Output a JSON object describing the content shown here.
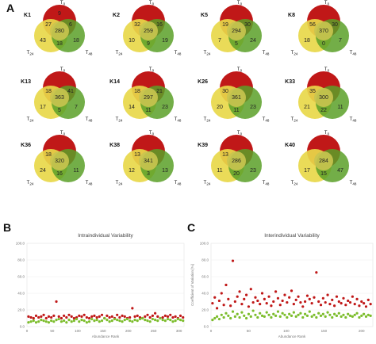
{
  "figure": {
    "panels": [
      {
        "id": "A",
        "label": "A"
      },
      {
        "id": "B",
        "label": "B"
      },
      {
        "id": "C",
        "label": "C"
      }
    ]
  },
  "colors": {
    "red": "#c01818",
    "yellow": "#e8d84a",
    "green": "#5aa028",
    "overlap_yg": "#b0c238",
    "center": "#c9c450"
  },
  "venn": [
    {
      "label": "K1",
      "labels": {
        "top": "T0",
        "left": "T24",
        "right": "T48"
      },
      "regions": {
        "top": "9",
        "top_left": "27",
        "top_right": "6",
        "center": "280",
        "left": "43",
        "right": "18",
        "bottom": "18"
      }
    },
    {
      "label": "K2",
      "labels": {
        "top": "T0",
        "left": "T24",
        "right": "T48"
      },
      "regions": {
        "top": "",
        "top_left": "32",
        "top_right": "16",
        "center": "259",
        "left": "10",
        "right": "19",
        "bottom": "9"
      }
    },
    {
      "label": "K5",
      "labels": {
        "top": "T0",
        "left": "T24",
        "right": "T48"
      },
      "regions": {
        "top": "",
        "top_left": "19",
        "top_right": "30",
        "center": "294",
        "left": "7",
        "right": "24",
        "bottom": "5"
      }
    },
    {
      "label": "K8",
      "labels": {
        "top": "T0",
        "left": "T24",
        "right": "T48"
      },
      "regions": {
        "top": "",
        "top_left": "56",
        "top_right": "30",
        "center": "370",
        "left": "18",
        "right": "7",
        "bottom": "0"
      }
    },
    {
      "label": "K13",
      "labels": {
        "top": "T0",
        "left": "T24",
        "right": "T48"
      },
      "regions": {
        "top": "",
        "top_left": "18",
        "top_right": "41",
        "center": "363",
        "left": "17",
        "right": "7",
        "bottom": "5"
      }
    },
    {
      "label": "K14",
      "labels": {
        "top": "T0",
        "left": "T24",
        "right": "T48"
      },
      "regions": {
        "top": "",
        "top_left": "18",
        "top_right": "21",
        "center": "297",
        "left": "14",
        "right": "23",
        "bottom": "11"
      }
    },
    {
      "label": "K26",
      "labels": {
        "top": "T0",
        "left": "T24",
        "right": "T48"
      },
      "regions": {
        "top": "",
        "top_left": "30",
        "top_right": "",
        "center": "361",
        "left": "20",
        "right": "23",
        "bottom": "11"
      }
    },
    {
      "label": "K33",
      "labels": {
        "top": "T0",
        "left": "T24",
        "right": "T48"
      },
      "regions": {
        "top": "",
        "top_left": "35",
        "top_right": "",
        "center": "300",
        "left": "21",
        "right": "11",
        "bottom": "22"
      }
    },
    {
      "label": "K36",
      "labels": {
        "top": "T0",
        "left": "T24",
        "right": "T48"
      },
      "regions": {
        "top": "",
        "top_left": "18",
        "top_right": "",
        "center": "320",
        "left": "24",
        "right": "11",
        "bottom": "16"
      }
    },
    {
      "label": "K38",
      "labels": {
        "top": "T0",
        "left": "T24",
        "right": "T48"
      },
      "regions": {
        "top": "",
        "top_left": "13",
        "top_right": "",
        "center": "341",
        "left": "12",
        "right": "13",
        "bottom": "3"
      }
    },
    {
      "label": "K39",
      "labels": {
        "top": "T0",
        "left": "T24",
        "right": "T48"
      },
      "regions": {
        "top": "",
        "top_left": "13",
        "top_right": "",
        "center": "286",
        "left": "11",
        "right": "23",
        "bottom": "20"
      }
    },
    {
      "label": "K40",
      "labels": {
        "top": "T0",
        "left": "T24",
        "right": "T48"
      },
      "regions": {
        "top": "",
        "top_left": "",
        "top_right": "",
        "center": "284",
        "left": "17",
        "right": "47",
        "bottom": "15"
      }
    }
  ],
  "chart_data": [
    {
      "type": "scatter",
      "title": "Intraindividual Variability",
      "xlabel": "Abundance Rank",
      "ylabel": "",
      "xlim": [
        0,
        310
      ],
      "ylim": [
        0,
        100
      ],
      "xticks": [
        "0",
        "50",
        "100",
        "150",
        "200",
        "250",
        "300"
      ],
      "yticks": [
        "0.0",
        "20.0",
        "40.0",
        "60.0",
        "80.0",
        "100.0"
      ],
      "series": [
        {
          "color": "#c01818",
          "x": [
            3,
            8,
            13,
            18,
            23,
            28,
            33,
            38,
            43,
            48,
            53,
            58,
            63,
            68,
            73,
            78,
            83,
            88,
            93,
            98,
            103,
            108,
            113,
            118,
            123,
            128,
            133,
            138,
            143,
            148,
            153,
            158,
            163,
            168,
            173,
            178,
            183,
            188,
            193,
            198,
            203,
            208,
            213,
            218,
            223,
            228,
            233,
            238,
            243,
            248,
            253,
            258,
            263,
            268,
            273,
            278,
            283,
            288,
            293,
            298,
            303,
            308
          ],
          "y": [
            12,
            11,
            10,
            13,
            11,
            12,
            14,
            10,
            12,
            11,
            13,
            30,
            12,
            10,
            13,
            11,
            14,
            12,
            10,
            11,
            13,
            12,
            14,
            11,
            10,
            12,
            13,
            11,
            12,
            14,
            10,
            13,
            11,
            12,
            10,
            14,
            11,
            13,
            12,
            10,
            11,
            22,
            12,
            13,
            11,
            10,
            12,
            14,
            11,
            13,
            16,
            12,
            10,
            11,
            13,
            12,
            14,
            11,
            12,
            10,
            13,
            11
          ]
        },
        {
          "color": "#7cbd2c",
          "x": [
            3,
            8,
            13,
            18,
            23,
            28,
            33,
            38,
            43,
            48,
            53,
            58,
            63,
            68,
            73,
            78,
            83,
            88,
            93,
            98,
            103,
            108,
            113,
            118,
            123,
            128,
            133,
            138,
            143,
            148,
            153,
            158,
            163,
            168,
            173,
            178,
            183,
            188,
            193,
            198,
            203,
            208,
            213,
            218,
            223,
            228,
            233,
            238,
            243,
            248,
            253,
            258,
            263,
            268,
            273,
            278,
            283,
            288,
            293,
            298,
            303,
            308
          ],
          "y": [
            5,
            6,
            7,
            5,
            6,
            8,
            7,
            6,
            5,
            7,
            6,
            8,
            9,
            6,
            7,
            5,
            8,
            6,
            7,
            9,
            6,
            8,
            7,
            5,
            6,
            9,
            7,
            8,
            6,
            7,
            10,
            8,
            6,
            7,
            9,
            8,
            7,
            6,
            8,
            9,
            7,
            6,
            8,
            7,
            9,
            10,
            8,
            7,
            6,
            9,
            8,
            7,
            10,
            8,
            7,
            9,
            8,
            6,
            7,
            9,
            8,
            7
          ]
        }
      ]
    },
    {
      "type": "scatter",
      "title": "Interindividual Variability",
      "xlabel": "Abundance Rank",
      "ylabel": "Coefficient of Variation [%]",
      "xlim": [
        0,
        215
      ],
      "ylim": [
        0,
        100
      ],
      "xticks": [
        "0",
        "50",
        "100",
        "150",
        "200"
      ],
      "yticks": [
        "0.0",
        "20.0",
        "40.0",
        "60.0",
        "80.0",
        "100.0"
      ],
      "series": [
        {
          "color": "#c01818",
          "x": [
            2,
            5,
            8,
            11,
            14,
            17,
            20,
            23,
            26,
            29,
            32,
            35,
            38,
            41,
            44,
            47,
            50,
            53,
            56,
            59,
            62,
            65,
            68,
            71,
            74,
            77,
            80,
            83,
            86,
            89,
            92,
            95,
            98,
            101,
            104,
            107,
            110,
            113,
            116,
            119,
            122,
            125,
            128,
            131,
            134,
            137,
            140,
            143,
            146,
            149,
            152,
            155,
            158,
            161,
            164,
            167,
            170,
            173,
            176,
            179,
            182,
            185,
            188,
            191,
            194,
            197,
            200,
            203,
            206,
            209,
            212
          ],
          "y": [
            28,
            35,
            22,
            31,
            40,
            26,
            50,
            33,
            25,
            79,
            30,
            36,
            42,
            27,
            33,
            38,
            24,
            45,
            29,
            35,
            31,
            27,
            40,
            33,
            28,
            36,
            25,
            30,
            42,
            34,
            26,
            31,
            38,
            29,
            35,
            43,
            27,
            32,
            36,
            29,
            24,
            30,
            37,
            33,
            28,
            35,
            65,
            30,
            26,
            34,
            29,
            38,
            27,
            32,
            25,
            36,
            30,
            28,
            34,
            26,
            31,
            29,
            36,
            27,
            33,
            25,
            30,
            28,
            24,
            32,
            27
          ]
        },
        {
          "color": "#7cbd2c",
          "x": [
            2,
            5,
            8,
            11,
            14,
            17,
            20,
            23,
            26,
            29,
            32,
            35,
            38,
            41,
            44,
            47,
            50,
            53,
            56,
            59,
            62,
            65,
            68,
            71,
            74,
            77,
            80,
            83,
            86,
            89,
            92,
            95,
            98,
            101,
            104,
            107,
            110,
            113,
            116,
            119,
            122,
            125,
            128,
            131,
            134,
            137,
            140,
            143,
            146,
            149,
            152,
            155,
            158,
            161,
            164,
            167,
            170,
            173,
            176,
            179,
            182,
            185,
            188,
            191,
            194,
            197,
            200,
            203,
            206,
            209,
            212
          ],
          "y": [
            8,
            10,
            12,
            9,
            14,
            11,
            16,
            13,
            10,
            18,
            12,
            15,
            11,
            17,
            13,
            10,
            15,
            12,
            19,
            14,
            11,
            16,
            13,
            12,
            17,
            14,
            11,
            15,
            13,
            18,
            12,
            16,
            14,
            11,
            15,
            13,
            17,
            12,
            14,
            16,
            11,
            15,
            13,
            18,
            12,
            14,
            11,
            16,
            13,
            15,
            12,
            17,
            14,
            11,
            15,
            13,
            16,
            12,
            14,
            11,
            15,
            13,
            12,
            14,
            16,
            11,
            13,
            15,
            12,
            14,
            13
          ]
        }
      ]
    }
  ]
}
